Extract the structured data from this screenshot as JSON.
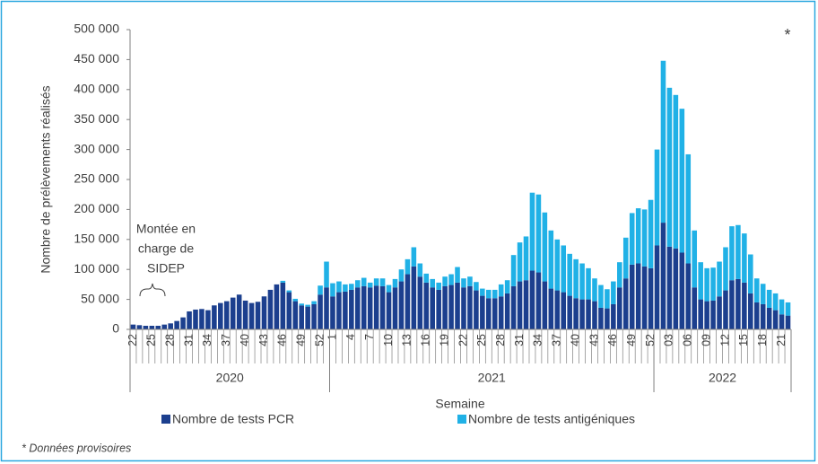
{
  "chart_data": {
    "type": "stacked_bar",
    "y_label": "Nombre de prélèvements réalisés",
    "x_label": "Semaine",
    "note": "* Données provisoires",
    "asterisk": "*",
    "annotation": [
      "Montée en",
      "charge de",
      "SIDEP"
    ],
    "ylim": [
      0,
      500000
    ],
    "yticks": [
      0,
      {
        "value": 50000,
        "label": "50 000"
      },
      {
        "value": 100000,
        "label": "100 000"
      },
      {
        "value": 150000,
        "label": "150 000"
      },
      {
        "value": 200000,
        "label": "200 000"
      },
      {
        "value": 250000,
        "label": "250 000"
      },
      {
        "value": 300000,
        "label": "300 000"
      },
      {
        "value": 350000,
        "label": "350 000"
      },
      {
        "value": 400000,
        "label": "400 000"
      },
      {
        "value": 450000,
        "label": "450 000"
      },
      {
        "value": 500000,
        "label": "500 000"
      }
    ],
    "groups": [
      {
        "label": "2020",
        "size": 32
      },
      {
        "label": "2021",
        "size": 52
      },
      {
        "label": "2022",
        "size": 22
      }
    ],
    "categories": [
      "22",
      null,
      null,
      "25",
      null,
      null,
      "28",
      null,
      null,
      "31",
      null,
      null,
      "34",
      null,
      null,
      "37",
      null,
      null,
      "40",
      null,
      null,
      "43",
      null,
      null,
      "46",
      null,
      null,
      "49",
      null,
      null,
      "52",
      null,
      "1",
      null,
      null,
      "4",
      null,
      null,
      "7",
      null,
      null,
      "10",
      null,
      null,
      "13",
      null,
      null,
      "16",
      null,
      null,
      "19",
      null,
      null,
      "22",
      null,
      null,
      "25",
      null,
      null,
      "28",
      null,
      null,
      "31",
      null,
      null,
      "34",
      null,
      null,
      "37",
      null,
      null,
      "40",
      null,
      null,
      "43",
      null,
      null,
      "46",
      null,
      null,
      "49",
      null,
      null,
      "52",
      null,
      null,
      "03",
      null,
      null,
      "06",
      null,
      null,
      "09",
      null,
      null,
      "12",
      null,
      null,
      "15",
      null,
      null,
      "18",
      null,
      null,
      "21",
      null
    ],
    "series": [
      {
        "name": "Nombre de tests PCR",
        "color": "#1c3f8e",
        "values": [
          8000,
          7000,
          6000,
          6000,
          6000,
          8000,
          10000,
          14000,
          20000,
          30000,
          33000,
          34000,
          32000,
          40000,
          44000,
          47000,
          53000,
          58000,
          48000,
          44000,
          46000,
          55000,
          66000,
          75000,
          78000,
          62000,
          47000,
          40000,
          38000,
          42000,
          58000,
          70000,
          55000,
          62000,
          63000,
          66000,
          70000,
          72000,
          70000,
          73000,
          72000,
          62000,
          70000,
          80000,
          92000,
          105000,
          88000,
          78000,
          70000,
          66000,
          72000,
          74000,
          78000,
          70000,
          72000,
          65000,
          56000,
          52000,
          52000,
          55000,
          60000,
          72000,
          80000,
          82000,
          98000,
          95000,
          80000,
          68000,
          65000,
          62000,
          56000,
          52000,
          50000,
          50000,
          47000,
          36000,
          35000,
          42000,
          70000,
          85000,
          108000,
          110000,
          105000,
          102000,
          140000,
          178000,
          138000,
          135000,
          128000,
          110000,
          70000,
          50000,
          47000,
          48000,
          55000,
          65000,
          82000,
          84000,
          78000,
          60000,
          45000,
          42000,
          36000,
          32000,
          25000,
          23000
        ]
      },
      {
        "name": "Nombre de tests antigéniques",
        "color": "#20b1e6",
        "values": [
          0,
          0,
          0,
          0,
          0,
          0,
          0,
          0,
          0,
          0,
          0,
          0,
          0,
          0,
          0,
          0,
          0,
          0,
          0,
          0,
          0,
          0,
          0,
          0,
          3000,
          3000,
          4000,
          3000,
          3000,
          5000,
          15000,
          43000,
          22000,
          18000,
          12000,
          10000,
          12000,
          14000,
          8000,
          12000,
          13000,
          12000,
          14000,
          20000,
          25000,
          32000,
          22000,
          15000,
          14000,
          12000,
          16000,
          18000,
          26000,
          15000,
          16000,
          14000,
          12000,
          14000,
          14000,
          20000,
          22000,
          52000,
          65000,
          73000,
          130000,
          130000,
          115000,
          97000,
          85000,
          78000,
          70000,
          65000,
          60000,
          52000,
          38000,
          38000,
          32000,
          38000,
          42000,
          68000,
          86000,
          92000,
          95000,
          114000,
          160000,
          270000,
          265000,
          256000,
          240000,
          182000,
          95000,
          62000,
          55000,
          55000,
          58000,
          72000,
          90000,
          90000,
          82000,
          65000,
          40000,
          34000,
          30000,
          28000,
          25000,
          22000
        ]
      }
    ]
  }
}
